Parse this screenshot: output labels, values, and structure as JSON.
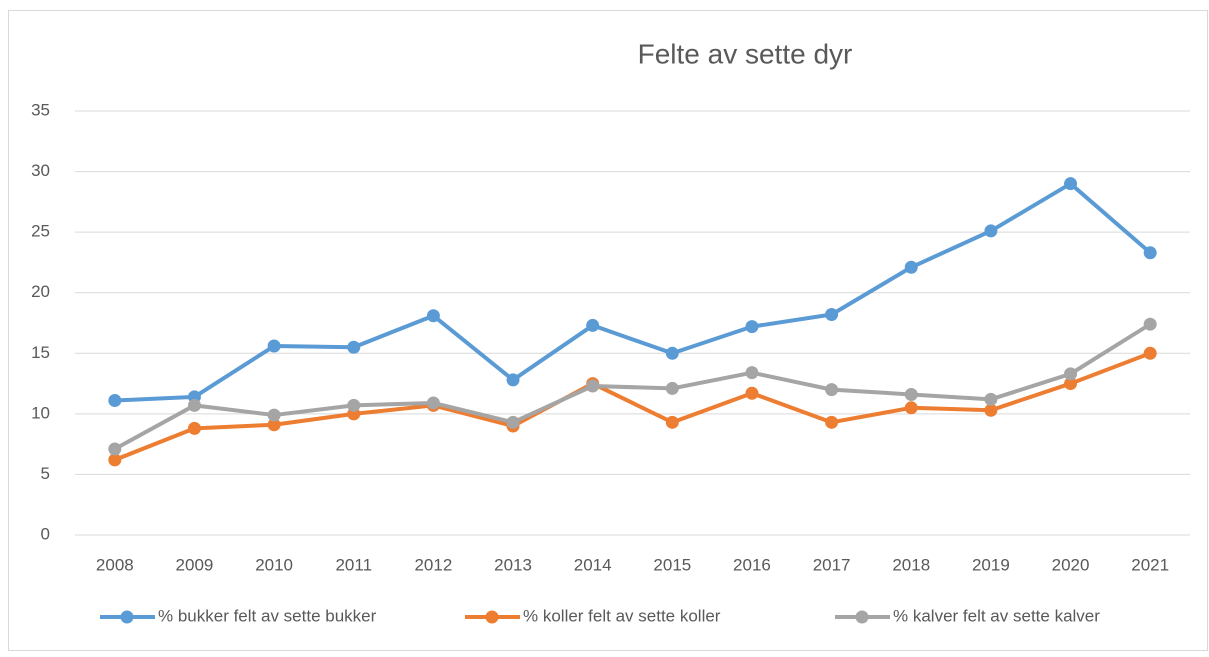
{
  "chart_data": {
    "type": "line",
    "title": "Felte av sette dyr",
    "categories": [
      "2008",
      "2009",
      "2010",
      "2011",
      "2012",
      "2013",
      "2014",
      "2015",
      "2016",
      "2017",
      "2018",
      "2019",
      "2020",
      "2021"
    ],
    "series": [
      {
        "name": "% bukker felt av sette bukker",
        "color": "#5b9bd5",
        "values": [
          11.1,
          11.4,
          15.6,
          15.5,
          18.1,
          12.8,
          17.3,
          15.0,
          17.2,
          18.2,
          22.1,
          25.1,
          29.0,
          23.3
        ]
      },
      {
        "name": "% koller felt av sette koller",
        "color": "#ed7d31",
        "values": [
          6.2,
          8.8,
          9.1,
          10.0,
          10.7,
          9.0,
          12.5,
          9.3,
          11.7,
          9.3,
          10.5,
          10.3,
          12.5,
          15.0
        ]
      },
      {
        "name": "% kalver felt av sette kalver",
        "color": "#a5a5a5",
        "values": [
          7.1,
          10.7,
          9.9,
          10.7,
          10.9,
          9.3,
          12.3,
          12.1,
          13.4,
          12.0,
          11.6,
          11.2,
          13.3,
          17.4
        ]
      }
    ],
    "ylim": [
      0,
      35
    ],
    "yticks": [
      0,
      5,
      10,
      15,
      20,
      25,
      30,
      35
    ],
    "grid": true,
    "legend": "bottom"
  }
}
